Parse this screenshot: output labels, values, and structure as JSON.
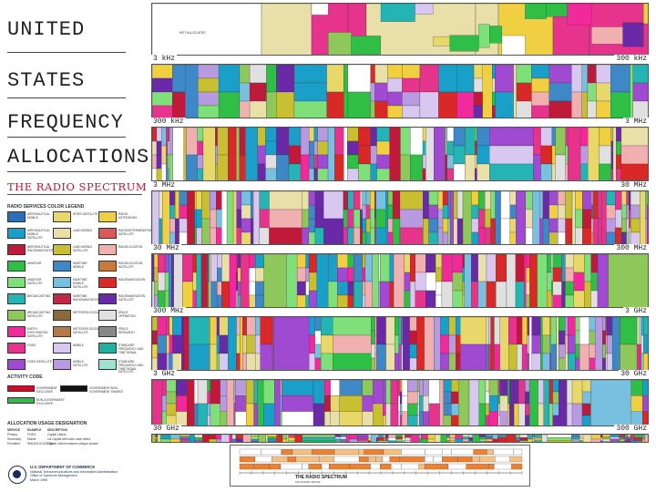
{
  "title": {
    "line1": "UNITED",
    "line2": "STATES",
    "line3": "FREQUENCY",
    "line4": "ALLOCATIONS",
    "subtitle": "THE RADIO SPECTRUM"
  },
  "legend": {
    "heading": "RADIO SERVICES COLOR LEGEND",
    "items": [
      {
        "label": "AERONAUTICAL MOBILE",
        "color": "#2a6fb8"
      },
      {
        "label": "AERONAUTICAL MOBILE SATELLITE",
        "color": "#1aa0c8"
      },
      {
        "label": "AERONAUTICAL RADIONAVIGATION",
        "color": "#c01a3a"
      },
      {
        "label": "AMATEUR",
        "color": "#2fbf46"
      },
      {
        "label": "AMATEUR SATELLITE",
        "color": "#7fe07a"
      },
      {
        "label": "BROADCASTING",
        "color": "#24b4b4"
      },
      {
        "label": "BROADCASTING SATELLITE",
        "color": "#8ec85a"
      },
      {
        "label": "EARTH EXPLORATION SATELLITE",
        "color": "#f02a9a"
      },
      {
        "label": "FIXED",
        "color": "#e6348c"
      },
      {
        "label": "FIXED SATELLITE",
        "color": "#a04ad2"
      },
      {
        "label": "INTER-SATELLITE",
        "color": "#e8d86a"
      },
      {
        "label": "LAND MOBILE",
        "color": "#e8e0a8"
      },
      {
        "label": "LAND MOBILE SATELLITE",
        "color": "#c8c030"
      },
      {
        "label": "MARITIME MOBILE",
        "color": "#3e88c8"
      },
      {
        "label": "MARITIME MOBILE SATELLITE",
        "color": "#78c0e0"
      },
      {
        "label": "MARITIME RADIONAVIGATION",
        "color": "#c02848"
      },
      {
        "label": "METEOROLOGICAL",
        "color": "#8a6a3a"
      },
      {
        "label": "METEOROLOGICAL SATELLITE",
        "color": "#b47a4a"
      },
      {
        "label": "MOBILE",
        "color": "#d8c8f0"
      },
      {
        "label": "MOBILE SATELLITE",
        "color": "#b89ae0"
      },
      {
        "label": "RADIO ASTRONOMY",
        "color": "#f0d040"
      },
      {
        "label": "RADIODETERMINATION SATELLITE",
        "color": "#d85a5a"
      },
      {
        "label": "RADIOLOCATION",
        "color": "#f0b0b0"
      },
      {
        "label": "RADIOLOCATION SATELLITE",
        "color": "#c87a3a"
      },
      {
        "label": "RADIONAVIGATION",
        "color": "#d82828"
      },
      {
        "label": "RADIONAVIGATION SATELLITE",
        "color": "#6a2aa8"
      },
      {
        "label": "SPACE OPERATION",
        "color": "#e0e0e0"
      },
      {
        "label": "SPACE RESEARCH",
        "color": "#888888"
      },
      {
        "label": "STANDARD FREQUENCY AND TIME SIGNAL",
        "color": "#20b0a0"
      },
      {
        "label": "STANDARD FREQUENCY AND TIME SIGNAL SATELLITE",
        "color": "#a0e0d0"
      }
    ]
  },
  "activity": {
    "heading": "ACTIVITY CODE",
    "items": [
      {
        "label": "GOVERNMENT EXCLUSIVE",
        "color": "#c8102e"
      },
      {
        "label": "GOVERNMENT/NON-GOVERNMENT SHARED",
        "color": "#111111"
      },
      {
        "label": "NON-GOVERNMENT EXCLUSIVE",
        "color": "#2fbf46"
      }
    ]
  },
  "alloc_usage": {
    "heading": "ALLOCATION USAGE DESIGNATION",
    "columns": [
      "SERVICE",
      "EXAMPLE",
      "DESCRIPTION"
    ],
    "rows": [
      [
        "Primary",
        "FIXED",
        "Capital Letters"
      ],
      [
        "Secondary",
        "Mobile",
        "1st Capital with lower case letters"
      ],
      [
        "Permitted",
        "/RADIOLOCATION/",
        "Capital Letters between oblique strokes"
      ]
    ]
  },
  "publisher": {
    "line1": "U.S. DEPARTMENT OF COMMERCE",
    "line2": "National Telecommunications and Information Administration",
    "line3": "Office of Spectrum Management",
    "line4": "March 1996"
  },
  "bands": [
    {
      "start": "3 kHz",
      "end": "300 kHz"
    },
    {
      "start": "300 kHz",
      "end": "3 MHz"
    },
    {
      "start": "3 MHz",
      "end": "30 MHz"
    },
    {
      "start": "30 MHz",
      "end": "300 MHz"
    },
    {
      "start": "300 MHz",
      "end": "3 GHz"
    },
    {
      "start": "3 GHz",
      "end": "30 GHz"
    },
    {
      "start": "30 GHz",
      "end": "300 GHz"
    }
  ],
  "top_band": {
    "label_left": "NOT ALLOCATED"
  },
  "footer": {
    "title": "THE RADIO SPECTRUM",
    "subtitle": "MAGNIFIED ABOVE"
  },
  "palette": [
    "#1aa0c8",
    "#e6348c",
    "#a04ad2",
    "#24b4b4",
    "#2fbf46",
    "#e8e0a8",
    "#d8c8f0",
    "#b89ae0",
    "#c01a3a",
    "#f0d040",
    "#3e88c8",
    "#e8d86a",
    "#f02a9a",
    "#8ec85a",
    "#d82828",
    "#ffffff",
    "#7fe07a",
    "#6a2aa8",
    "#c8c030",
    "#78c0e0",
    "#e0e0e0",
    "#f0b0b0"
  ]
}
